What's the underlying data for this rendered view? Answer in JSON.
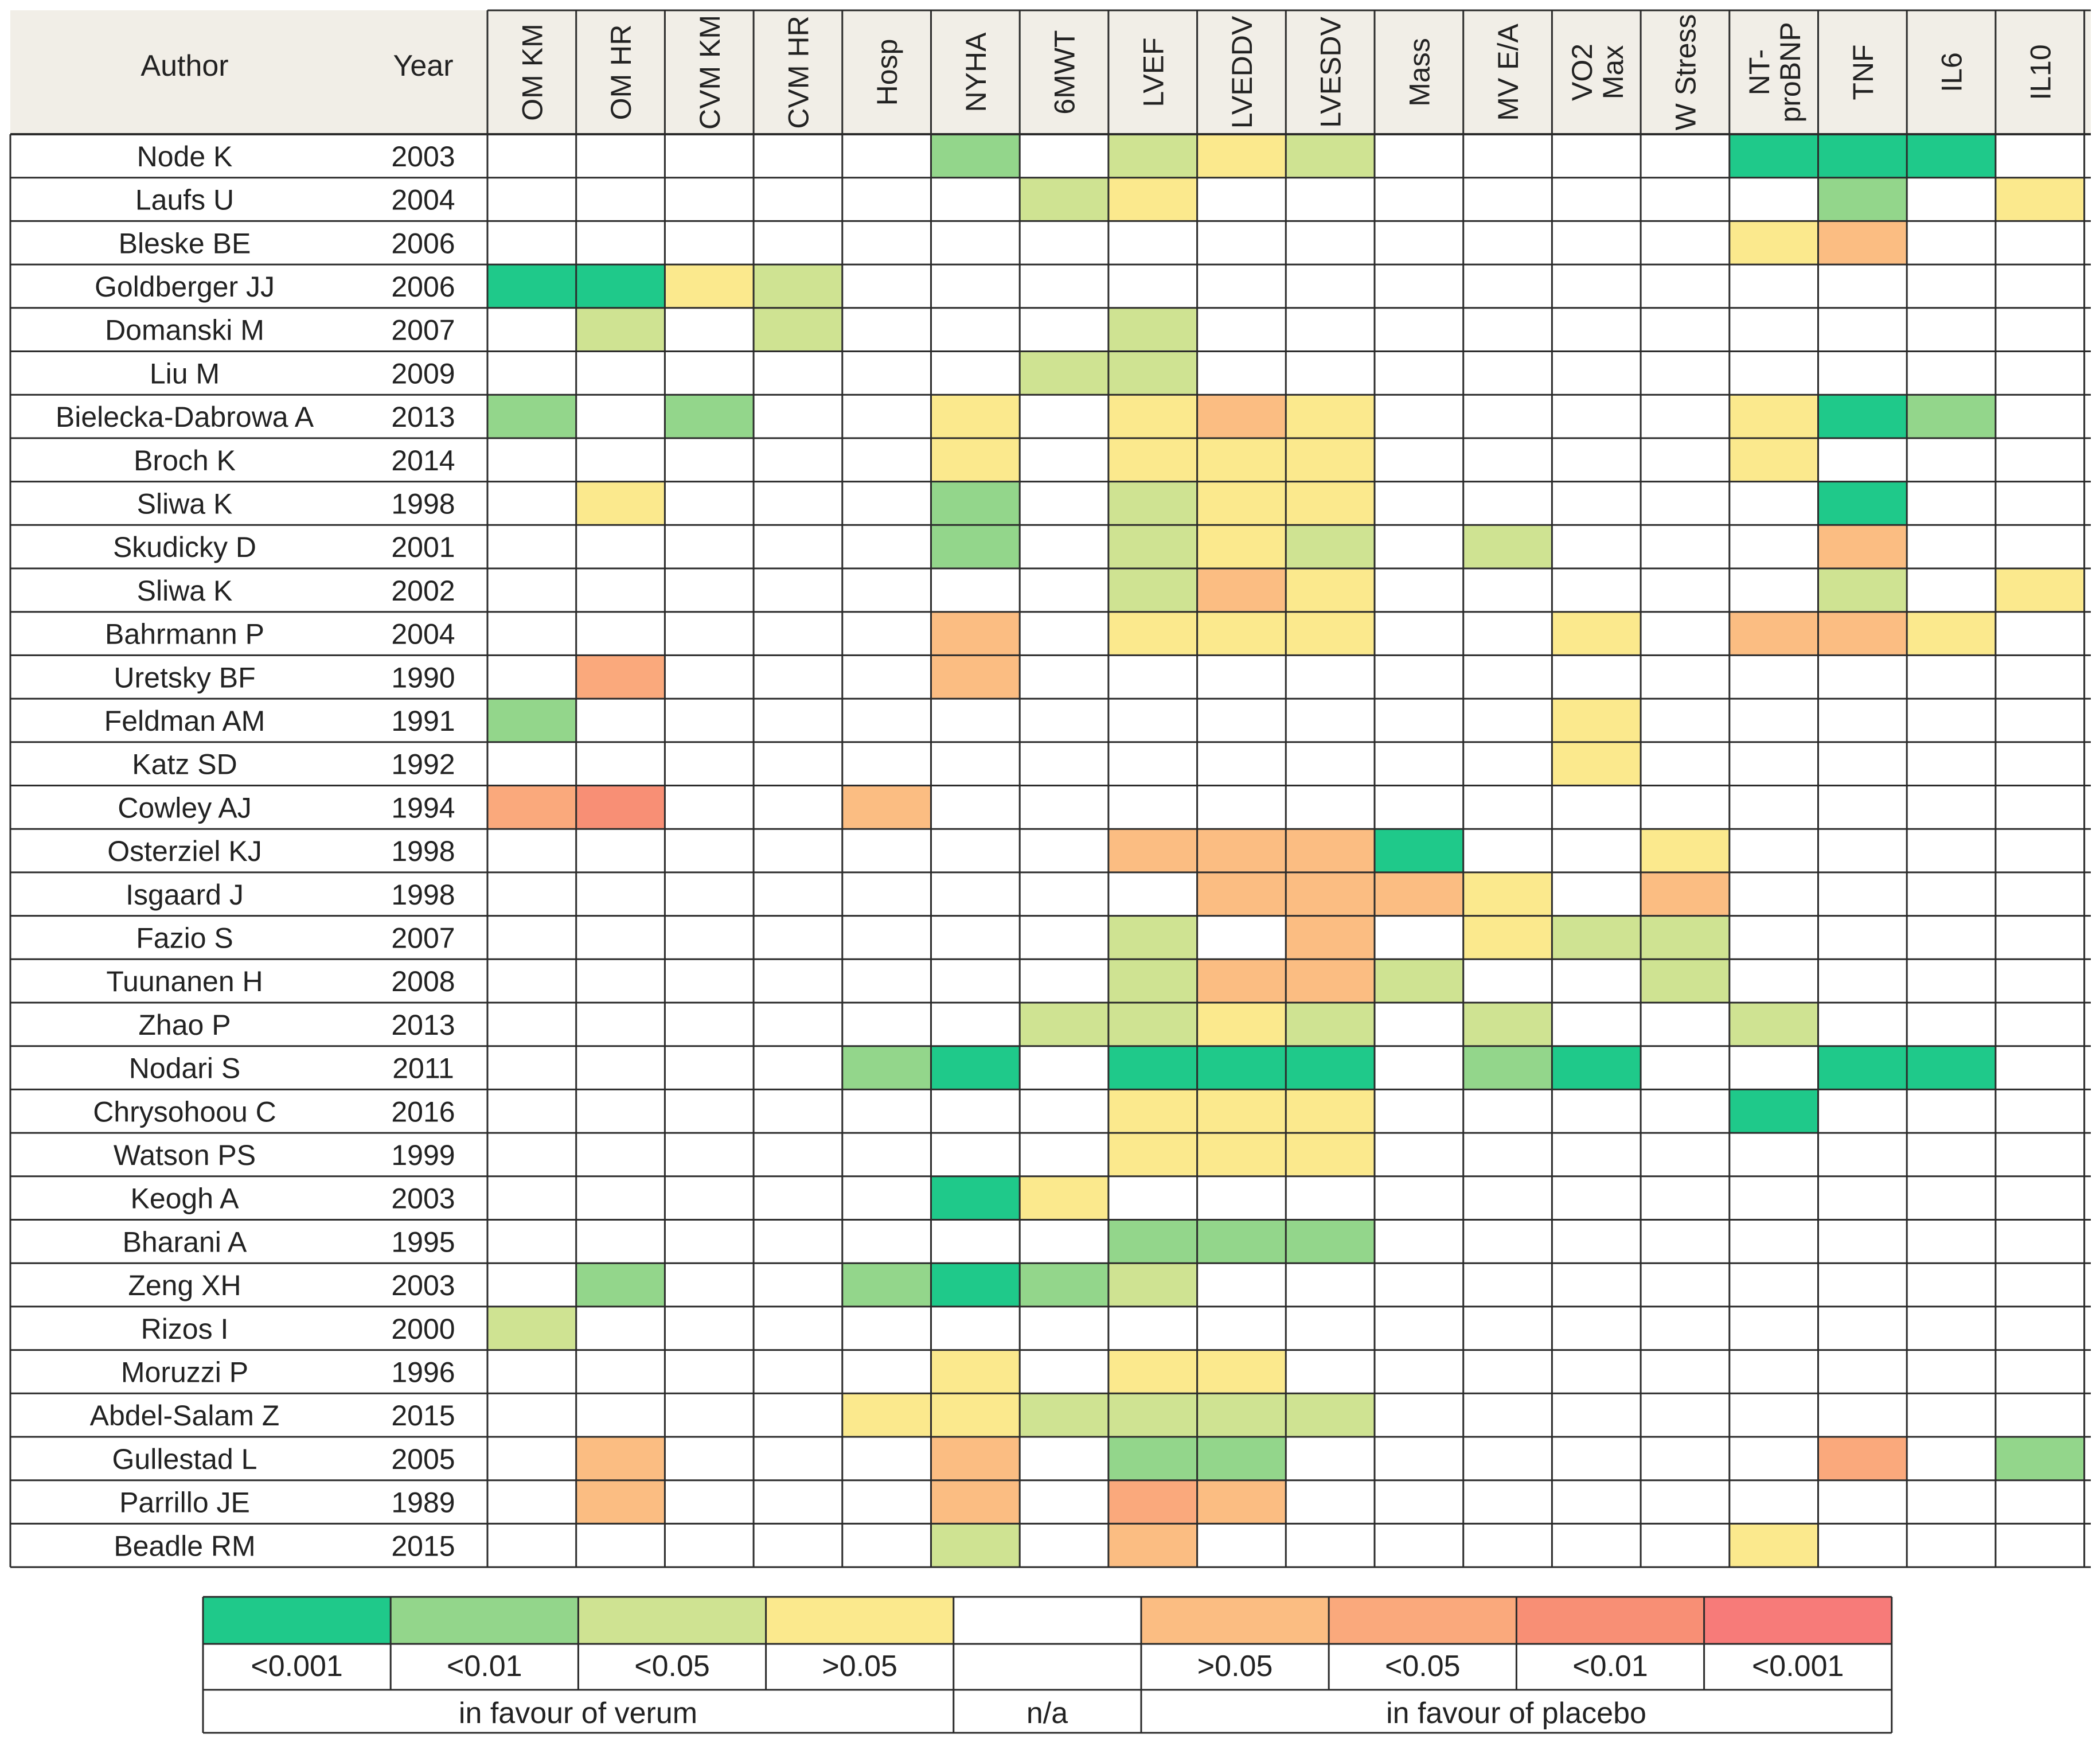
{
  "chart_data": {
    "type": "heatmap",
    "row_header": "Author",
    "year_header": "Year",
    "columns": [
      [
        "OM KM"
      ],
      [
        "OM HR"
      ],
      [
        "CVM KM"
      ],
      [
        "CVM HR"
      ],
      [
        "Hosp"
      ],
      [
        "NYHA"
      ],
      [
        "6MWT"
      ],
      [
        "LVEF"
      ],
      [
        "LVEDDV"
      ],
      [
        "LVESDV"
      ],
      [
        "Mass"
      ],
      [
        "MV E/A"
      ],
      [
        "VO2",
        "Max"
      ],
      [
        "W Stress"
      ],
      [
        "NT-",
        "proBNP"
      ],
      [
        "TNF"
      ],
      [
        "IL6"
      ],
      [
        "IL10"
      ]
    ],
    "rows": [
      {
        "author": "Node K",
        "year": "2003",
        "cells": [
          0,
          0,
          0,
          0,
          0,
          2,
          0,
          3,
          4,
          3,
          0,
          0,
          0,
          0,
          1,
          1,
          1,
          0
        ]
      },
      {
        "author": "Laufs U",
        "year": "2004",
        "cells": [
          0,
          0,
          0,
          0,
          0,
          0,
          3,
          4,
          0,
          0,
          0,
          0,
          0,
          0,
          0,
          2,
          0,
          4
        ]
      },
      {
        "author": "Bleske BE",
        "year": "2006",
        "cells": [
          0,
          0,
          0,
          0,
          0,
          0,
          0,
          0,
          0,
          0,
          0,
          0,
          0,
          0,
          4,
          5,
          0,
          0
        ]
      },
      {
        "author": "Goldberger JJ",
        "year": "2006",
        "cells": [
          1,
          1,
          4,
          3,
          0,
          0,
          0,
          0,
          0,
          0,
          0,
          0,
          0,
          0,
          0,
          0,
          0,
          0
        ]
      },
      {
        "author": "Domanski M",
        "year": "2007",
        "cells": [
          0,
          3,
          0,
          3,
          0,
          0,
          0,
          3,
          0,
          0,
          0,
          0,
          0,
          0,
          0,
          0,
          0,
          0
        ]
      },
      {
        "author": "Liu M",
        "year": "2009",
        "cells": [
          0,
          0,
          0,
          0,
          0,
          0,
          3,
          3,
          0,
          0,
          0,
          0,
          0,
          0,
          0,
          0,
          0,
          0
        ]
      },
      {
        "author": "Bielecka-Dabrowa A",
        "year": "2013",
        "cells": [
          2,
          0,
          2,
          0,
          0,
          4,
          0,
          4,
          5,
          4,
          0,
          0,
          0,
          0,
          4,
          1,
          2,
          0
        ]
      },
      {
        "author": "Broch K",
        "year": "2014",
        "cells": [
          0,
          0,
          0,
          0,
          0,
          4,
          0,
          4,
          4,
          4,
          0,
          0,
          0,
          0,
          4,
          0,
          0,
          0
        ]
      },
      {
        "author": "Sliwa K",
        "year": "1998",
        "cells": [
          0,
          4,
          0,
          0,
          0,
          2,
          0,
          3,
          4,
          4,
          0,
          0,
          0,
          0,
          0,
          1,
          0,
          0
        ]
      },
      {
        "author": "Skudicky D",
        "year": "2001",
        "cells": [
          0,
          0,
          0,
          0,
          0,
          2,
          0,
          3,
          4,
          3,
          0,
          3,
          0,
          0,
          0,
          5,
          0,
          0
        ]
      },
      {
        "author": "Sliwa K",
        "year": "2002",
        "cells": [
          0,
          0,
          0,
          0,
          0,
          0,
          0,
          3,
          5,
          4,
          0,
          0,
          0,
          0,
          0,
          3,
          0,
          4
        ]
      },
      {
        "author": "Bahrmann P",
        "year": "2004",
        "cells": [
          0,
          0,
          0,
          0,
          0,
          5,
          0,
          4,
          4,
          4,
          0,
          0,
          4,
          0,
          5,
          5,
          4,
          0
        ]
      },
      {
        "author": "Uretsky BF",
        "year": "1990",
        "cells": [
          0,
          6,
          0,
          0,
          0,
          5,
          0,
          0,
          0,
          0,
          0,
          0,
          0,
          0,
          0,
          0,
          0,
          0
        ]
      },
      {
        "author": "Feldman AM",
        "year": "1991",
        "cells": [
          2,
          0,
          0,
          0,
          0,
          0,
          0,
          0,
          0,
          0,
          0,
          0,
          4,
          0,
          0,
          0,
          0,
          0
        ]
      },
      {
        "author": "Katz SD",
        "year": "1992",
        "cells": [
          0,
          0,
          0,
          0,
          0,
          0,
          0,
          0,
          0,
          0,
          0,
          0,
          4,
          0,
          0,
          0,
          0,
          0
        ]
      },
      {
        "author": "Cowley AJ",
        "year": "1994",
        "cells": [
          6,
          7,
          0,
          0,
          5,
          0,
          0,
          0,
          0,
          0,
          0,
          0,
          0,
          0,
          0,
          0,
          0,
          0
        ]
      },
      {
        "author": "Osterziel KJ",
        "year": "1998",
        "cells": [
          0,
          0,
          0,
          0,
          0,
          0,
          0,
          5,
          5,
          5,
          1,
          0,
          0,
          4,
          0,
          0,
          0,
          0
        ]
      },
      {
        "author": "Isgaard J",
        "year": "1998",
        "cells": [
          0,
          0,
          0,
          0,
          0,
          0,
          0,
          0,
          5,
          5,
          5,
          4,
          0,
          5,
          0,
          0,
          0,
          0
        ]
      },
      {
        "author": "Fazio S",
        "year": "2007",
        "cells": [
          0,
          0,
          0,
          0,
          0,
          0,
          0,
          3,
          0,
          5,
          0,
          4,
          3,
          3,
          0,
          0,
          0,
          0
        ]
      },
      {
        "author": "Tuunanen H",
        "year": "2008",
        "cells": [
          0,
          0,
          0,
          0,
          0,
          0,
          0,
          3,
          5,
          5,
          3,
          0,
          0,
          3,
          0,
          0,
          0,
          0
        ]
      },
      {
        "author": "Zhao P",
        "year": "2013",
        "cells": [
          0,
          0,
          0,
          0,
          0,
          0,
          3,
          3,
          4,
          3,
          0,
          3,
          0,
          0,
          3,
          0,
          0,
          0
        ]
      },
      {
        "author": "Nodari S",
        "year": "2011",
        "cells": [
          0,
          0,
          0,
          0,
          2,
          1,
          0,
          1,
          1,
          1,
          0,
          2,
          1,
          0,
          0,
          1,
          1,
          0
        ]
      },
      {
        "author": "Chrysohoou C",
        "year": "2016",
        "cells": [
          0,
          0,
          0,
          0,
          0,
          0,
          0,
          4,
          4,
          4,
          0,
          0,
          0,
          0,
          1,
          0,
          0,
          0
        ]
      },
      {
        "author": "Watson PS",
        "year": "1999",
        "cells": [
          0,
          0,
          0,
          0,
          0,
          0,
          0,
          4,
          4,
          4,
          0,
          0,
          0,
          0,
          0,
          0,
          0,
          0
        ]
      },
      {
        "author": "Keogh A",
        "year": "2003",
        "cells": [
          0,
          0,
          0,
          0,
          0,
          1,
          4,
          0,
          0,
          0,
          0,
          0,
          0,
          0,
          0,
          0,
          0,
          0
        ]
      },
      {
        "author": "Bharani A",
        "year": "1995",
        "cells": [
          0,
          0,
          0,
          0,
          0,
          0,
          0,
          2,
          2,
          2,
          0,
          0,
          0,
          0,
          0,
          0,
          0,
          0
        ]
      },
      {
        "author": "Zeng XH",
        "year": "2003",
        "cells": [
          0,
          2,
          0,
          0,
          2,
          1,
          2,
          3,
          0,
          0,
          0,
          0,
          0,
          0,
          0,
          0,
          0,
          0
        ]
      },
      {
        "author": "Rizos I",
        "year": "2000",
        "cells": [
          3,
          0,
          0,
          0,
          0,
          0,
          0,
          0,
          0,
          0,
          0,
          0,
          0,
          0,
          0,
          0,
          0,
          0
        ]
      },
      {
        "author": "Moruzzi P",
        "year": "1996",
        "cells": [
          0,
          0,
          0,
          0,
          0,
          4,
          0,
          4,
          4,
          0,
          0,
          0,
          0,
          0,
          0,
          0,
          0,
          0
        ]
      },
      {
        "author": "Abdel-Salam Z",
        "year": "2015",
        "cells": [
          0,
          0,
          0,
          0,
          4,
          4,
          3,
          3,
          3,
          3,
          0,
          0,
          0,
          0,
          0,
          0,
          0,
          0
        ]
      },
      {
        "author": "Gullestad L",
        "year": "2005",
        "cells": [
          0,
          5,
          0,
          0,
          0,
          5,
          0,
          2,
          2,
          0,
          0,
          0,
          0,
          0,
          0,
          6,
          0,
          2
        ]
      },
      {
        "author": "Parrillo JE",
        "year": "1989",
        "cells": [
          0,
          5,
          0,
          0,
          0,
          5,
          0,
          6,
          5,
          0,
          0,
          0,
          0,
          0,
          0,
          0,
          0,
          0
        ]
      },
      {
        "author": "Beadle RM",
        "year": "2015",
        "cells": [
          0,
          0,
          0,
          0,
          0,
          3,
          0,
          5,
          0,
          0,
          0,
          0,
          0,
          0,
          4,
          0,
          0,
          0
        ]
      }
    ],
    "legend": {
      "bins": [
        {
          "label": "<0.001",
          "color": "#1fc98a"
        },
        {
          "label": "<0.01",
          "color": "#93d68b"
        },
        {
          "label": "<0.05",
          "color": "#cfe392"
        },
        {
          "label": ">0.05",
          "color": "#fbe98d"
        },
        {
          "label": "",
          "color": "#ffffff"
        },
        {
          "label": ">0.05",
          "color": "#fbbd82"
        },
        {
          "label": "<0.05",
          "color": "#faa97c"
        },
        {
          "label": "<0.01",
          "color": "#f88f75"
        },
        {
          "label": "<0.001",
          "color": "#f77b79"
        }
      ],
      "group_verum": "in favour of verum",
      "group_na": "n/a",
      "group_placebo": "in favour of placebo"
    },
    "code_to_legend_bin": {
      "0": 4,
      "1": 0,
      "2": 1,
      "3": 2,
      "4": 3,
      "5": 5,
      "6": 6,
      "7": 7,
      "8": 8
    }
  }
}
